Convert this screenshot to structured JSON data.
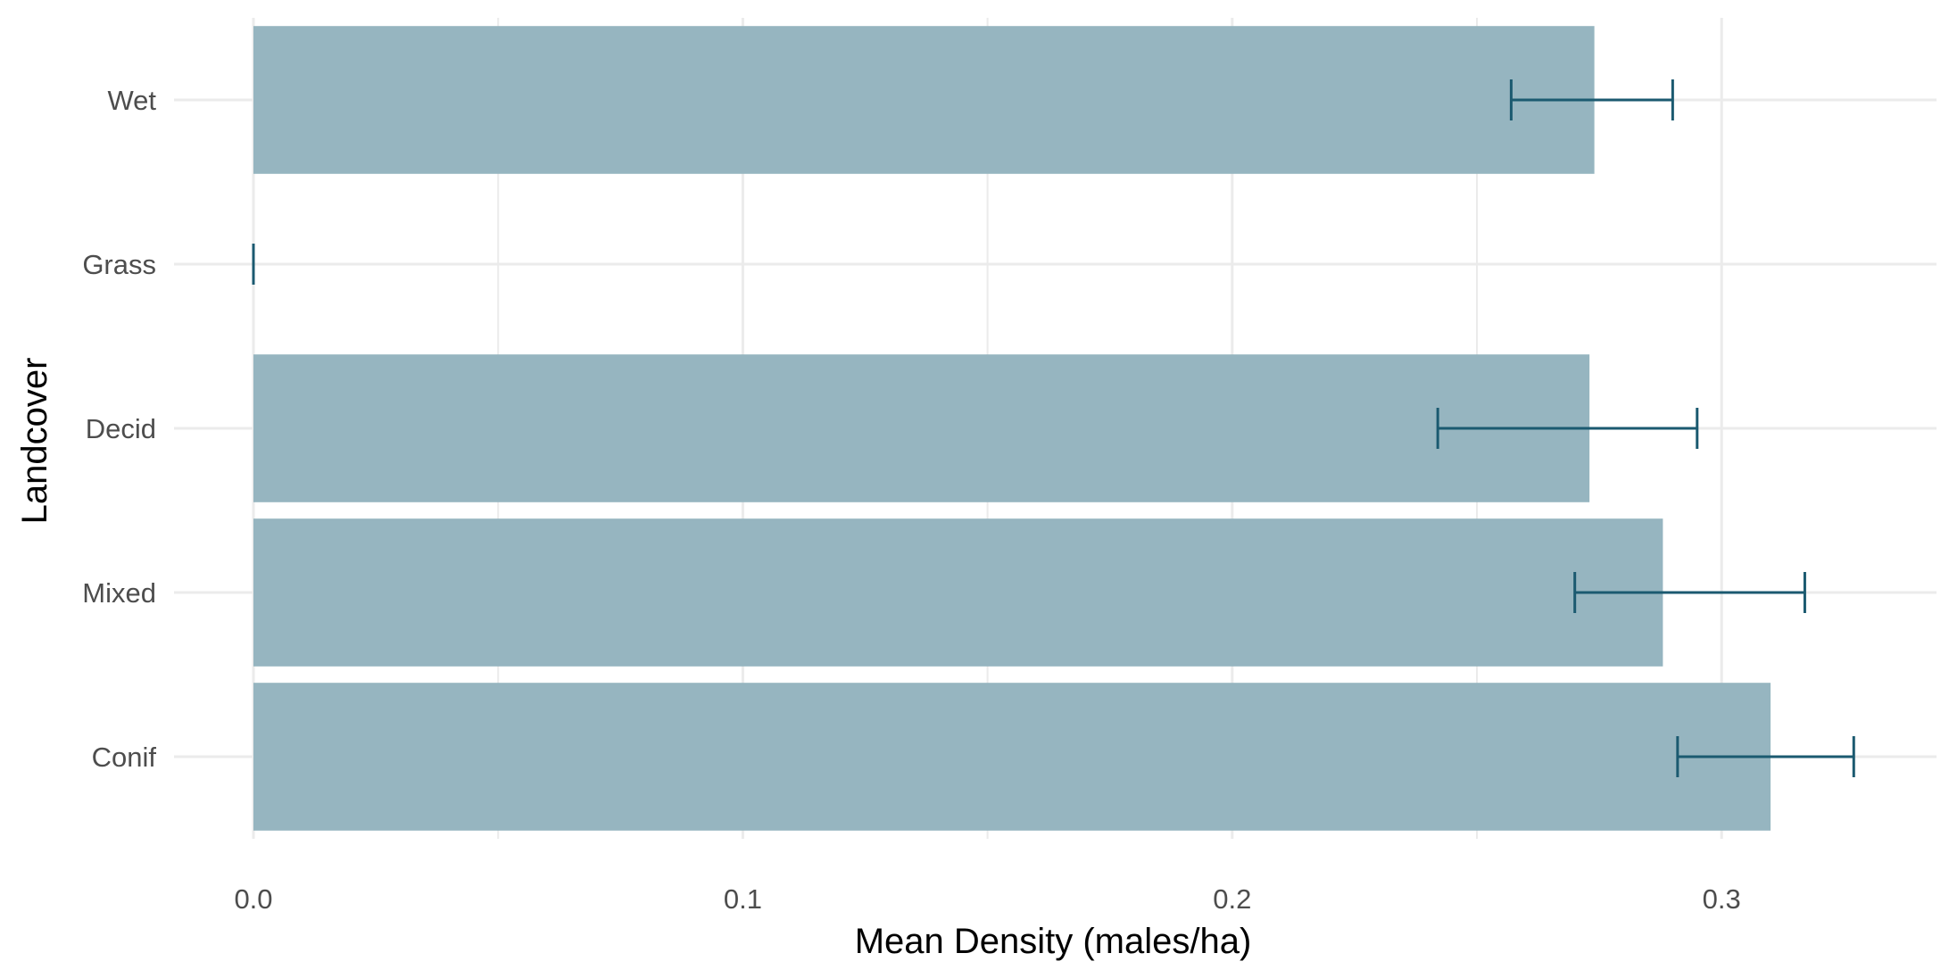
{
  "chart_data": {
    "type": "bar",
    "orientation": "horizontal",
    "title": "",
    "xlabel": "Mean Density (males/ha)",
    "ylabel": "Landcover",
    "xlim": [
      0,
      0.344
    ],
    "x_ticks": [
      0.0,
      0.1,
      0.2,
      0.3
    ],
    "x_tick_labels": [
      "0.0",
      "0.1",
      "0.2",
      "0.3"
    ],
    "categories": [
      "Conif",
      "Mixed",
      "Decid",
      "Grass",
      "Wet"
    ],
    "values": [
      0.31,
      0.288,
      0.273,
      0.0,
      0.274
    ],
    "error_low": [
      0.291,
      0.27,
      0.242,
      0.0,
      0.257
    ],
    "error_high": [
      0.327,
      0.317,
      0.295,
      0.0,
      0.29
    ],
    "grid": true,
    "legend": "none",
    "colors": {
      "bar": "#96b5c0",
      "error_bar": "#1b5a70",
      "grid": "#ebebeb",
      "tick_text": "#4d4d4d",
      "title_text": "#000000"
    }
  }
}
